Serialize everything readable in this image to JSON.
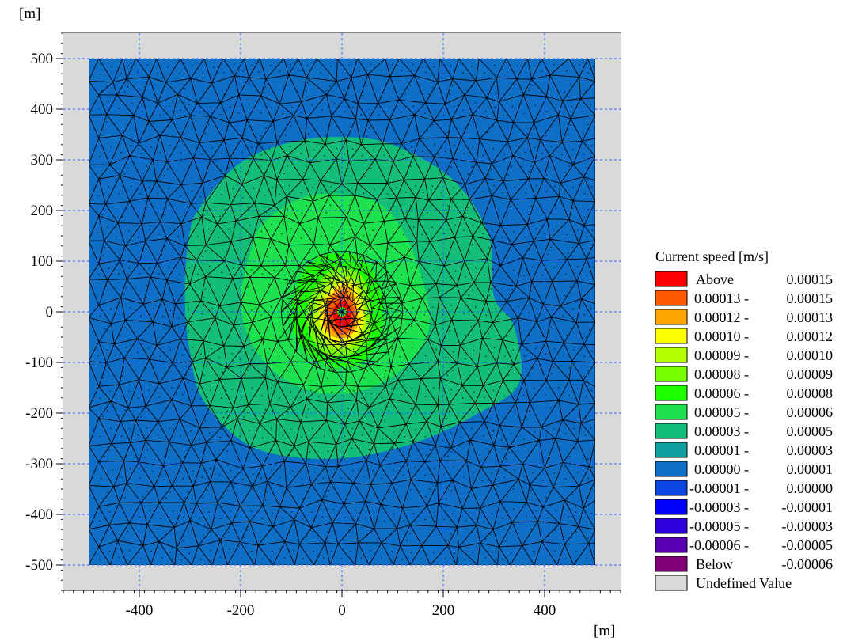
{
  "chart_data": {
    "type": "heatmap",
    "subtype": "flexible-mesh contour plot",
    "x_unit": "[m]",
    "y_unit": "[m]",
    "xlim": [
      -550,
      550
    ],
    "ylim": [
      -550,
      550
    ],
    "domain_x": [
      -500,
      500
    ],
    "domain_y": [
      -500,
      500
    ],
    "x_ticks": [
      -400,
      -200,
      0,
      200,
      400
    ],
    "y_ticks": [
      500,
      400,
      300,
      200,
      100,
      0,
      -100,
      -200,
      -300,
      -400,
      -500
    ],
    "x_tick_labels": [
      "-400",
      "-200",
      "0",
      "200",
      "400"
    ],
    "y_tick_labels": [
      "500",
      "400",
      "300",
      "200",
      "100",
      "0",
      "-100",
      "-200",
      "-300",
      "-400",
      "-500"
    ],
    "grid": true,
    "mesh_overlay": true,
    "legend_placement": "right",
    "legend_title": "Current speed [m/s]",
    "undefined_color": "#d9d9d9",
    "background_color": "#0f6fc6",
    "legend": [
      {
        "label_left": "Above",
        "label_right": "0.00015",
        "color": "#ff0000"
      },
      {
        "label_left": "0.00013 -",
        "label_right": "0.00015",
        "color": "#ff5a00"
      },
      {
        "label_left": "0.00012 -",
        "label_right": "0.00013",
        "color": "#ffa500"
      },
      {
        "label_left": "0.00010 -",
        "label_right": "0.00012",
        "color": "#ffff00"
      },
      {
        "label_left": "0.00009 -",
        "label_right": "0.00010",
        "color": "#b4ff00"
      },
      {
        "label_left": "0.00008 -",
        "label_right": "0.00009",
        "color": "#78ff00"
      },
      {
        "label_left": "0.00006 -",
        "label_right": "0.00008",
        "color": "#1eff00"
      },
      {
        "label_left": "0.00005 -",
        "label_right": "0.00006",
        "color": "#1ee150"
      },
      {
        "label_left": "0.00003 -",
        "label_right": "0.00005",
        "color": "#14be78"
      },
      {
        "label_left": "0.00001 -",
        "label_right": "0.00003",
        "color": "#0fa0a0"
      },
      {
        "label_left": "0.00000 -",
        "label_right": "0.00001",
        "color": "#0f6fc6"
      },
      {
        "label_left": "-0.00001 -",
        "label_right": "0.00000",
        "color": "#0a46e1"
      },
      {
        "label_left": "-0.00003 -",
        "label_right": "-0.00001",
        "color": "#0000ff"
      },
      {
        "label_left": "-0.00005 -",
        "label_right": "-0.00003",
        "color": "#2d00dc"
      },
      {
        "label_left": "-0.00006 -",
        "label_right": "-0.00005",
        "color": "#5a00b4"
      },
      {
        "label_left": "Below",
        "label_right": "-0.00006",
        "color": "#820078"
      },
      {
        "label_left": "Undefined Value",
        "label_right": "",
        "color": "#d9d9d9"
      }
    ],
    "contours": [
      {
        "level_color": "#14be78",
        "points": [
          [
            -300,
            160
          ],
          [
            -270,
            220
          ],
          [
            -200,
            295
          ],
          [
            -100,
            335
          ],
          [
            0,
            345
          ],
          [
            100,
            330
          ],
          [
            220,
            260
          ],
          [
            290,
            150
          ],
          [
            300,
            30
          ],
          [
            340,
            -30
          ],
          [
            350,
            -140
          ],
          [
            270,
            -200
          ],
          [
            140,
            -260
          ],
          [
            -10,
            -290
          ],
          [
            -170,
            -270
          ],
          [
            -270,
            -180
          ],
          [
            -300,
            -80
          ],
          [
            -310,
            30
          ]
        ]
      },
      {
        "level_color": "#1ee150",
        "points": [
          [
            -180,
            120
          ],
          [
            -150,
            180
          ],
          [
            -60,
            230
          ],
          [
            60,
            220
          ],
          [
            120,
            160
          ],
          [
            160,
            60
          ],
          [
            170,
            -40
          ],
          [
            110,
            -120
          ],
          [
            20,
            -160
          ],
          [
            -80,
            -150
          ],
          [
            -160,
            -90
          ],
          [
            -200,
            10
          ]
        ]
      },
      {
        "level_color": "#1eff00",
        "points": [
          [
            -80,
            70
          ],
          [
            -40,
            110
          ],
          [
            30,
            110
          ],
          [
            70,
            60
          ],
          [
            80,
            -20
          ],
          [
            50,
            -90
          ],
          [
            -10,
            -110
          ],
          [
            -70,
            -80
          ],
          [
            -100,
            -10
          ]
        ]
      },
      {
        "level_color": "#78ff00",
        "points": [
          [
            -50,
            50
          ],
          [
            -15,
            85
          ],
          [
            35,
            75
          ],
          [
            55,
            20
          ],
          [
            55,
            -45
          ],
          [
            25,
            -80
          ],
          [
            -25,
            -85
          ],
          [
            -60,
            -50
          ],
          [
            -70,
            0
          ]
        ]
      },
      {
        "level_color": "#b4ff00",
        "points": [
          [
            -40,
            40
          ],
          [
            -10,
            70
          ],
          [
            30,
            60
          ],
          [
            45,
            15
          ],
          [
            45,
            -40
          ],
          [
            15,
            -70
          ],
          [
            -25,
            -70
          ],
          [
            -50,
            -40
          ],
          [
            -55,
            0
          ]
        ]
      },
      {
        "level_color": "#ffff00",
        "points": [
          [
            -30,
            35
          ],
          [
            0,
            60
          ],
          [
            25,
            50
          ],
          [
            40,
            10
          ],
          [
            40,
            -30
          ],
          [
            15,
            -60
          ],
          [
            -20,
            -60
          ],
          [
            -40,
            -35
          ],
          [
            -45,
            0
          ]
        ]
      },
      {
        "level_color": "#ffa500",
        "points": [
          [
            -25,
            30
          ],
          [
            0,
            50
          ],
          [
            20,
            40
          ],
          [
            30,
            5
          ],
          [
            30,
            -30
          ],
          [
            10,
            -50
          ],
          [
            -15,
            -50
          ],
          [
            -35,
            -30
          ],
          [
            -35,
            0
          ]
        ]
      },
      {
        "level_color": "#ff5a00",
        "points": [
          [
            -20,
            25
          ],
          [
            0,
            40
          ],
          [
            15,
            30
          ],
          [
            25,
            5
          ],
          [
            25,
            -25
          ],
          [
            5,
            -45
          ],
          [
            -15,
            -40
          ],
          [
            -28,
            -20
          ],
          [
            -30,
            5
          ]
        ]
      },
      {
        "level_color": "#ff0000",
        "points": [
          [
            -10,
            15
          ],
          [
            5,
            22
          ],
          [
            15,
            10
          ],
          [
            18,
            -12
          ],
          [
            10,
            -30
          ],
          [
            -5,
            -32
          ],
          [
            -15,
            -18
          ],
          [
            -18,
            0
          ]
        ]
      }
    ],
    "center_spot": {
      "x": 0,
      "y": 0,
      "color": "#1eff00"
    }
  }
}
